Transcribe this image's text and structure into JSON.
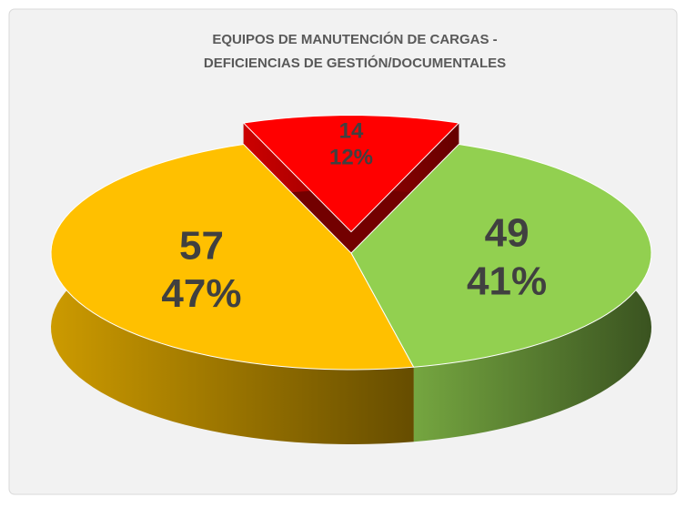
{
  "chart_data": {
    "type": "pie3d",
    "title_lines": [
      "EQUIPOS DE MANUTENCIÓN DE CARGAS -",
      "DEFICIENCIAS DE GESTIÓN/DOCUMENTALES"
    ],
    "values": [
      14,
      49,
      57
    ],
    "percent_labels": [
      "12%",
      "41%",
      "47%"
    ],
    "colors": [
      "#ff0000",
      "#92d050",
      "#ffc000"
    ],
    "exploded": [
      true,
      false,
      false
    ]
  }
}
